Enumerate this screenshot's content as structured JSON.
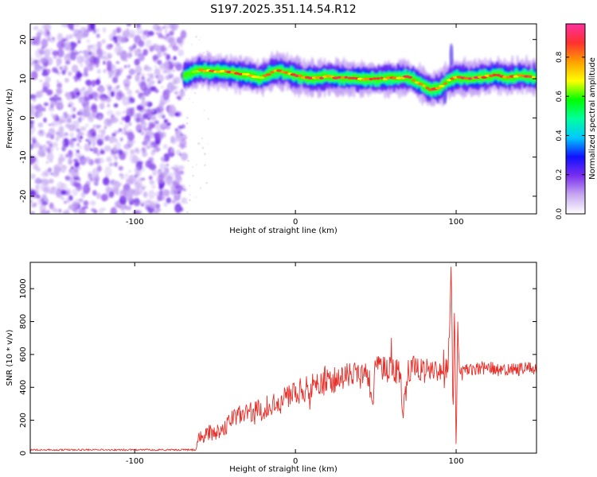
{
  "title": "S197.2025.351.14.54.R12",
  "chart_data": [
    {
      "type": "heatmap",
      "xlabel": "Height of straight line (km)",
      "ylabel": "Frequency (Hz)",
      "xlim": [
        -165,
        150
      ],
      "ylim": [
        -24.5,
        24
      ],
      "xticks": [
        -100,
        0,
        100
      ],
      "yticks": [
        -20,
        -10,
        0,
        10,
        20
      ],
      "noise_region": {
        "x_start": -165,
        "x_end": -69,
        "y_start": -24.5,
        "y_end": 24
      },
      "ridge": {
        "x": [
          -69,
          -60,
          -50,
          -40,
          -30,
          -22,
          -12,
          -5,
          0,
          10,
          20,
          30,
          40,
          50,
          60,
          70,
          78,
          84,
          90,
          94,
          100,
          110,
          120,
          125,
          130,
          140,
          150
        ],
        "freq": [
          10.8,
          12.2,
          11.9,
          11.6,
          11.0,
          10.2,
          12.1,
          11.6,
          10.8,
          10.1,
          10.5,
          10.2,
          10.0,
          9.9,
          10.2,
          10.4,
          8.7,
          7.2,
          7.6,
          9.3,
          10.3,
          10.1,
          10.6,
          11.0,
          10.4,
          10.8,
          10.4
        ],
        "peak_amplitude": [
          0.55,
          0.8,
          0.85,
          0.9,
          0.85,
          0.8,
          0.95,
          0.9,
          0.9,
          0.92,
          0.9,
          0.9,
          0.88,
          0.9,
          0.85,
          0.9,
          0.92,
          0.95,
          0.9,
          0.85,
          0.9,
          0.95,
          0.92,
          0.9,
          0.9,
          0.9,
          0.9
        ]
      },
      "colorbar": {
        "label": "Normalized spectral amplitude",
        "range": [
          0.0,
          0.97
        ],
        "ticks": [
          0.0,
          0.2,
          0.4,
          0.6,
          0.8
        ],
        "tick_labels": [
          "0.0",
          "0.2",
          "0.4",
          "0.6",
          "0.8"
        ],
        "colors": [
          "#ffffff",
          "#c8a8f0",
          "#7a2ff0",
          "#1010ff",
          "#00c8ff",
          "#00ffa0",
          "#00ff00",
          "#ffff00",
          "#ffa000",
          "#ff3030",
          "#ff30a0"
        ]
      }
    },
    {
      "type": "line",
      "xlabel": "Height of straight line (km)",
      "ylabel": "SNR (10 * v/v)",
      "xlim": [
        -165,
        150
      ],
      "ylim": [
        0,
        1160
      ],
      "xticks": [
        -100,
        0,
        100
      ],
      "yticks": [
        0,
        200,
        400,
        600,
        800,
        1000
      ],
      "color": "#e8302a",
      "series": [
        {
          "x": [
            -165,
            -140,
            -100,
            -80,
            -62,
            -60,
            -58,
            -55,
            -50,
            -45,
            -40,
            -35,
            -30,
            -25,
            -20,
            -15,
            -10,
            -5,
            0,
            5,
            10,
            15,
            20,
            25,
            30,
            35,
            40,
            45,
            48,
            50,
            55,
            60,
            65,
            67,
            70,
            75,
            80,
            85,
            90,
            95,
            97,
            98,
            99,
            100,
            101,
            102,
            104,
            110,
            120,
            130,
            140,
            150
          ],
          "y": [
            20,
            20,
            20,
            20,
            20,
            120,
            80,
            120,
            130,
            150,
            200,
            230,
            240,
            250,
            270,
            300,
            330,
            340,
            370,
            380,
            400,
            420,
            440,
            450,
            460,
            470,
            480,
            490,
            350,
            520,
            510,
            500,
            500,
            230,
            500,
            520,
            500,
            510,
            505,
            520,
            1150,
            200,
            900,
            50,
            800,
            500,
            500,
            510,
            520,
            500,
            510,
            520
          ],
          "noise_amplitude": [
            5,
            5,
            5,
            5,
            5,
            40,
            40,
            50,
            50,
            55,
            60,
            60,
            65,
            65,
            70,
            70,
            75,
            75,
            80,
            80,
            80,
            85,
            85,
            85,
            90,
            90,
            90,
            90,
            90,
            90,
            90,
            85,
            85,
            85,
            80,
            75,
            75,
            70,
            70,
            60,
            60,
            60,
            60,
            60,
            60,
            40,
            40,
            40,
            40,
            40,
            40,
            40
          ]
        }
      ]
    }
  ]
}
